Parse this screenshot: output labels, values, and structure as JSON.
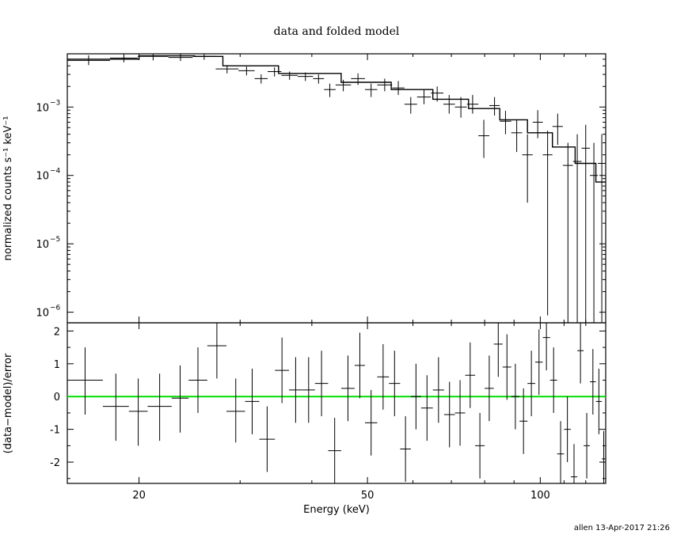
{
  "chart_data": [
    {
      "type": "scatter",
      "panel": "top",
      "title": "data and folded model",
      "xlabel": "",
      "ylabel": "normalized counts s⁻¹ keV⁻¹",
      "xscale": "log",
      "yscale": "log",
      "xlim": [
        15,
        130
      ],
      "ylim": [
        7e-07,
        0.006
      ],
      "xticks": [
        20,
        50,
        100
      ],
      "yticks": [
        {
          "value": 0.001,
          "base": "10",
          "exp": "−3"
        },
        {
          "value": 0.0001,
          "base": "10",
          "exp": "−4"
        },
        {
          "value": 1e-05,
          "base": "10",
          "exp": "−5"
        },
        {
          "value": 1e-06,
          "base": "10",
          "exp": "−6"
        }
      ],
      "data": [
        {
          "x1": 15.0,
          "x2": 17.8,
          "y": 0.0048,
          "ylo": 0.0041,
          "yhi": 0.0057
        },
        {
          "x1": 17.8,
          "x2": 19.9,
          "y": 0.0052,
          "ylo": 0.0045,
          "yhi": 0.006
        },
        {
          "x1": 19.9,
          "x2": 22.5,
          "y": 0.0055,
          "ylo": 0.0048,
          "yhi": 0.0062
        },
        {
          "x1": 22.5,
          "x2": 24.8,
          "y": 0.0053,
          "ylo": 0.0047,
          "yhi": 0.006
        },
        {
          "x1": 24.8,
          "x2": 27.2,
          "y": 0.0055,
          "ylo": 0.0049,
          "yhi": 0.0062
        },
        {
          "x1": 27.2,
          "x2": 29.8,
          "y": 0.0036,
          "ylo": 0.0031,
          "yhi": 0.0041
        },
        {
          "x1": 29.8,
          "x2": 31.8,
          "y": 0.0034,
          "ylo": 0.0029,
          "yhi": 0.0039
        },
        {
          "x1": 31.8,
          "x2": 33.5,
          "y": 0.0026,
          "ylo": 0.0022,
          "yhi": 0.003
        },
        {
          "x1": 33.5,
          "x2": 35.4,
          "y": 0.0033,
          "ylo": 0.0028,
          "yhi": 0.0038
        },
        {
          "x1": 35.4,
          "x2": 37.8,
          "y": 0.0029,
          "ylo": 0.0025,
          "yhi": 0.0033
        },
        {
          "x1": 37.8,
          "x2": 40.2,
          "y": 0.0028,
          "ylo": 0.0024,
          "yhi": 0.0032
        },
        {
          "x1": 40.2,
          "x2": 42.0,
          "y": 0.0026,
          "ylo": 0.0022,
          "yhi": 0.003
        },
        {
          "x1": 42.0,
          "x2": 44.0,
          "y": 0.0018,
          "ylo": 0.0014,
          "yhi": 0.0022
        },
        {
          "x1": 44.0,
          "x2": 46.8,
          "y": 0.0021,
          "ylo": 0.0017,
          "yhi": 0.0025
        },
        {
          "x1": 46.8,
          "x2": 49.5,
          "y": 0.0026,
          "ylo": 0.0021,
          "yhi": 0.0031
        },
        {
          "x1": 49.5,
          "x2": 52.0,
          "y": 0.0018,
          "ylo": 0.0014,
          "yhi": 0.0022
        },
        {
          "x1": 52.0,
          "x2": 55.2,
          "y": 0.0021,
          "ylo": 0.0017,
          "yhi": 0.0026
        },
        {
          "x1": 55.2,
          "x2": 58.0,
          "y": 0.0019,
          "ylo": 0.0015,
          "yhi": 0.0024
        },
        {
          "x1": 58.0,
          "x2": 61.0,
          "y": 0.0011,
          "ylo": 0.0008,
          "yhi": 0.0014
        },
        {
          "x1": 61.0,
          "x2": 64.5,
          "y": 0.0014,
          "ylo": 0.0011,
          "yhi": 0.0018
        },
        {
          "x1": 64.5,
          "x2": 67.8,
          "y": 0.0016,
          "ylo": 0.0012,
          "yhi": 0.002
        },
        {
          "x1": 67.8,
          "x2": 71.0,
          "y": 0.0011,
          "ylo": 0.0008,
          "yhi": 0.0015
        },
        {
          "x1": 71.0,
          "x2": 74.5,
          "y": 0.001,
          "ylo": 0.0007,
          "yhi": 0.0014
        },
        {
          "x1": 74.5,
          "x2": 78.0,
          "y": 0.0011,
          "ylo": 0.0008,
          "yhi": 0.0015
        },
        {
          "x1": 78.0,
          "x2": 81.5,
          "y": 0.00038,
          "ylo": 0.00018,
          "yhi": 0.00065
        },
        {
          "x1": 81.5,
          "x2": 85.0,
          "y": 0.00105,
          "ylo": 0.00075,
          "yhi": 0.0014
        },
        {
          "x1": 85.0,
          "x2": 89.0,
          "y": 0.00062,
          "ylo": 0.0004,
          "yhi": 0.00088
        },
        {
          "x1": 89.0,
          "x2": 93.0,
          "y": 0.00042,
          "ylo": 0.00022,
          "yhi": 0.00065
        },
        {
          "x1": 93.0,
          "x2": 97.0,
          "y": 0.0002,
          "ylo": 4e-05,
          "yhi": 0.0004
        },
        {
          "x1": 97.0,
          "x2": 101.0,
          "y": 0.0006,
          "ylo": 0.00035,
          "yhi": 0.0009
        },
        {
          "x1": 101.0,
          "x2": 105.0,
          "y": 0.0002,
          "ylo": 9e-07,
          "yhi": 0.00045
        },
        {
          "x1": 105.0,
          "x2": 109.5,
          "y": 0.00052,
          "ylo": 0.00028,
          "yhi": 0.0008
        },
        {
          "x1": 109.5,
          "x2": 114.0,
          "y": 0.00014,
          "ylo": 7e-07,
          "yhi": 0.0003
        },
        {
          "x1": 114.0,
          "x2": 118.0,
          "y": 0.00016,
          "ylo": 7e-07,
          "yhi": 0.0004
        },
        {
          "x1": 118.0,
          "x2": 122.0,
          "y": 0.00025,
          "ylo": 7e-07,
          "yhi": 0.00055
        },
        {
          "x1": 122.0,
          "x2": 126.0,
          "y": 0.0001,
          "ylo": 7e-07,
          "yhi": 0.0003
        },
        {
          "x1": 126.0,
          "x2": 130.0,
          "y": 0.00015,
          "ylo": 7e-07,
          "yhi": 0.0004
        }
      ],
      "model": [
        {
          "x": 15.0,
          "y": 0.005
        },
        {
          "x": 20.0,
          "y": 0.0056
        },
        {
          "x": 25.0,
          "y": 0.0055
        },
        {
          "x": 28.0,
          "y": 0.004
        },
        {
          "x": 35.0,
          "y": 0.0031
        },
        {
          "x": 45.0,
          "y": 0.0023
        },
        {
          "x": 55.0,
          "y": 0.0018
        },
        {
          "x": 65.0,
          "y": 0.0013
        },
        {
          "x": 75.0,
          "y": 0.00095
        },
        {
          "x": 85.0,
          "y": 0.00065
        },
        {
          "x": 95.0,
          "y": 0.00042
        },
        {
          "x": 105.0,
          "y": 0.00026
        },
        {
          "x": 115.0,
          "y": 0.00015
        },
        {
          "x": 125.0,
          "y": 8e-05
        },
        {
          "x": 130.0,
          "y": 4.5e-05
        }
      ]
    },
    {
      "type": "scatter",
      "panel": "bottom",
      "xlabel": "Energy (keV)",
      "ylabel": "(data−model)/error",
      "xscale": "log",
      "xlim": [
        15,
        130
      ],
      "ylim": [
        -2.65,
        2.25
      ],
      "xticks": [
        20,
        50,
        100
      ],
      "yticks": [
        2,
        1,
        0,
        -1,
        -2
      ],
      "zero_line_color": "#00dd00",
      "data": [
        {
          "x1": 15.0,
          "x2": 17.3,
          "y": 0.5,
          "ylo": -0.55,
          "yhi": 1.5
        },
        {
          "x1": 17.3,
          "x2": 19.2,
          "y": -0.3,
          "ylo": -1.35,
          "yhi": 0.7
        },
        {
          "x1": 19.2,
          "x2": 20.7,
          "y": -0.45,
          "ylo": -1.5,
          "yhi": 0.55
        },
        {
          "x1": 20.7,
          "x2": 22.8,
          "y": -0.3,
          "ylo": -1.35,
          "yhi": 0.7
        },
        {
          "x1": 22.8,
          "x2": 24.4,
          "y": -0.05,
          "ylo": -1.1,
          "yhi": 0.95
        },
        {
          "x1": 24.4,
          "x2": 26.3,
          "y": 0.5,
          "ylo": -0.5,
          "yhi": 1.5
        },
        {
          "x1": 26.3,
          "x2": 28.4,
          "y": 1.55,
          "ylo": 0.55,
          "yhi": 2.25
        },
        {
          "x1": 28.4,
          "x2": 30.6,
          "y": -0.45,
          "ylo": -1.4,
          "yhi": 0.55
        },
        {
          "x1": 30.6,
          "x2": 32.4,
          "y": -0.15,
          "ylo": -1.15,
          "yhi": 0.85
        },
        {
          "x1": 32.4,
          "x2": 34.5,
          "y": -1.3,
          "ylo": -2.3,
          "yhi": -0.3
        },
        {
          "x1": 34.5,
          "x2": 36.5,
          "y": 0.8,
          "ylo": -0.2,
          "yhi": 1.8
        },
        {
          "x1": 36.5,
          "x2": 38.5,
          "y": 0.2,
          "ylo": -0.8,
          "yhi": 1.2
        },
        {
          "x1": 38.5,
          "x2": 40.5,
          "y": 0.2,
          "ylo": -0.8,
          "yhi": 1.2
        },
        {
          "x1": 40.5,
          "x2": 42.7,
          "y": 0.4,
          "ylo": -0.6,
          "yhi": 1.4
        },
        {
          "x1": 42.7,
          "x2": 45.0,
          "y": -1.65,
          "ylo": -2.65,
          "yhi": -0.65
        },
        {
          "x1": 45.0,
          "x2": 47.5,
          "y": 0.25,
          "ylo": -0.75,
          "yhi": 1.25
        },
        {
          "x1": 47.5,
          "x2": 49.5,
          "y": 0.95,
          "ylo": -0.05,
          "yhi": 1.95
        },
        {
          "x1": 49.5,
          "x2": 52.0,
          "y": -0.8,
          "ylo": -1.8,
          "yhi": 0.2
        },
        {
          "x1": 52.0,
          "x2": 54.5,
          "y": 0.6,
          "ylo": -0.4,
          "yhi": 1.6
        },
        {
          "x1": 54.5,
          "x2": 57.0,
          "y": 0.4,
          "ylo": -0.6,
          "yhi": 1.4
        },
        {
          "x1": 57.0,
          "x2": 59.5,
          "y": -1.6,
          "ylo": -2.6,
          "yhi": -0.6
        },
        {
          "x1": 59.5,
          "x2": 62.0,
          "y": 0.0,
          "ylo": -1.0,
          "yhi": 1.0
        },
        {
          "x1": 62.0,
          "x2": 65.0,
          "y": -0.35,
          "ylo": -1.35,
          "yhi": 0.65
        },
        {
          "x1": 65.0,
          "x2": 68.0,
          "y": 0.2,
          "ylo": -0.8,
          "yhi": 1.2
        },
        {
          "x1": 68.0,
          "x2": 71.0,
          "y": -0.55,
          "ylo": -1.55,
          "yhi": 0.45
        },
        {
          "x1": 71.0,
          "x2": 74.0,
          "y": -0.5,
          "ylo": -1.5,
          "yhi": 0.5
        },
        {
          "x1": 74.0,
          "x2": 77.0,
          "y": 0.65,
          "ylo": -0.35,
          "yhi": 1.65
        },
        {
          "x1": 77.0,
          "x2": 80.0,
          "y": -1.5,
          "ylo": -2.5,
          "yhi": -0.5
        },
        {
          "x1": 80.0,
          "x2": 83.0,
          "y": 0.25,
          "ylo": -0.75,
          "yhi": 1.25
        },
        {
          "x1": 83.0,
          "x2": 86.0,
          "y": 1.6,
          "ylo": 0.6,
          "yhi": 2.25
        },
        {
          "x1": 86.0,
          "x2": 89.0,
          "y": 0.9,
          "ylo": -0.1,
          "yhi": 1.9
        },
        {
          "x1": 89.0,
          "x2": 92.0,
          "y": 0.0,
          "ylo": -1.0,
          "yhi": 1.0
        },
        {
          "x1": 92.0,
          "x2": 95.0,
          "y": -0.75,
          "ylo": -1.75,
          "yhi": 0.25
        },
        {
          "x1": 95.0,
          "x2": 98.0,
          "y": 0.4,
          "ylo": -0.6,
          "yhi": 1.4
        },
        {
          "x1": 98.0,
          "x2": 101.0,
          "y": 1.05,
          "ylo": 0.05,
          "yhi": 2.05
        },
        {
          "x1": 101.0,
          "x2": 104.0,
          "y": 1.8,
          "ylo": 0.8,
          "yhi": 2.25
        },
        {
          "x1": 104.0,
          "x2": 107.0,
          "y": 0.5,
          "ylo": -0.5,
          "yhi": 1.5
        },
        {
          "x1": 107.0,
          "x2": 110.0,
          "y": -1.75,
          "ylo": -2.65,
          "yhi": -0.75
        },
        {
          "x1": 110.0,
          "x2": 113.0,
          "y": -1.0,
          "ylo": -2.0,
          "yhi": 0.0
        },
        {
          "x1": 113.0,
          "x2": 116.0,
          "y": -2.45,
          "ylo": -2.65,
          "yhi": -1.45
        },
        {
          "x1": 116.0,
          "x2": 119.0,
          "y": 1.4,
          "ylo": 0.4,
          "yhi": 2.25
        },
        {
          "x1": 119.0,
          "x2": 122.0,
          "y": -1.5,
          "ylo": -2.5,
          "yhi": -0.5
        },
        {
          "x1": 122.0,
          "x2": 125.0,
          "y": 0.45,
          "ylo": -0.55,
          "yhi": 1.45
        },
        {
          "x1": 125.0,
          "x2": 128.0,
          "y": -0.15,
          "ylo": -1.15,
          "yhi": 0.85
        },
        {
          "x1": 128.0,
          "x2": 130.0,
          "y": -1.9,
          "ylo": -2.65,
          "yhi": -1.05
        }
      ]
    }
  ],
  "footer": "allen 13-Apr-2017 21:26"
}
